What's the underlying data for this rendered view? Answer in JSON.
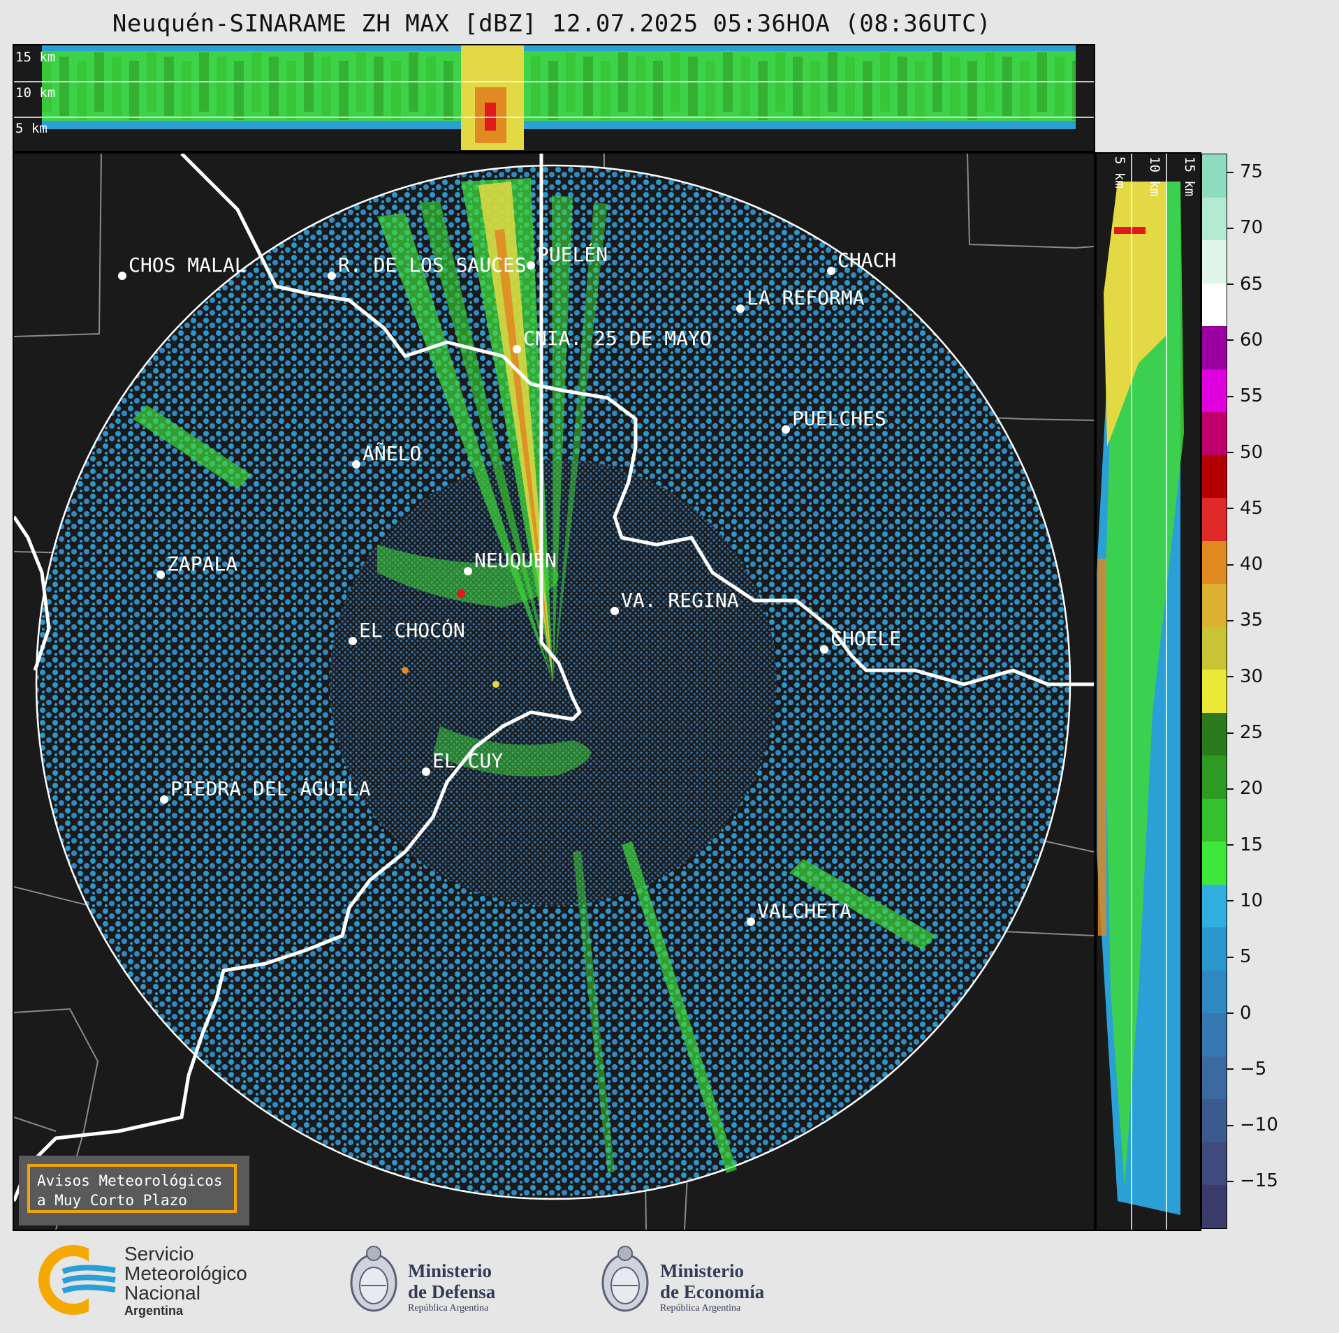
{
  "title": "Neuquén-SINARAME ZH MAX [dBZ] 12.07.2025 05:36HOA (08:36UTC)",
  "top_panel": {
    "labels": [
      "15 km",
      "10 km",
      "5 km"
    ]
  },
  "side_panel": {
    "labels": [
      "5 km",
      "10 km",
      "15 km"
    ]
  },
  "colorbar": {
    "ticks": [
      "75",
      "70",
      "65",
      "60",
      "55",
      "50",
      "45",
      "40",
      "35",
      "30",
      "25",
      "20",
      "15",
      "10",
      "5",
      "0",
      "−5",
      "−10",
      "−15"
    ],
    "colors": [
      "#3b3b6b",
      "#414a7c",
      "#3c5a8e",
      "#3a6aa0",
      "#3878b0",
      "#2f88bf",
      "#2a98cc",
      "#31aee0",
      "#3ee83a",
      "#36c02e",
      "#2e9a24",
      "#2c7a1e",
      "#eaea36",
      "#c9c436",
      "#dcb030",
      "#e08a22",
      "#e02a2a",
      "#b40000",
      "#c0006a",
      "#e000e0",
      "#9a00a0",
      "#ffffff",
      "#dff5ea",
      "#b5ead2",
      "#8edcc0"
    ]
  },
  "cities": [
    {
      "name": "CHOS MALAL",
      "color": "#ffffff"
    },
    {
      "name": "R. DE LOS SAUCES",
      "color": "#ffffff"
    },
    {
      "name": "PUELÉN",
      "color": "#ffffff"
    },
    {
      "name": "CHACH",
      "color": "#ffffff"
    },
    {
      "name": "LA REFORMA",
      "color": "#ffffff"
    },
    {
      "name": "CNIA. 25 DE MAYO",
      "color": "#ffffff"
    },
    {
      "name": "PUELCHES",
      "color": "#ffffff"
    },
    {
      "name": "AÑELO",
      "color": "#ffffff"
    },
    {
      "name": "ZAPALA",
      "color": "#ffffff"
    },
    {
      "name": "NEUQUÉN",
      "color": "#ffffff"
    },
    {
      "name": "VA. REGINA",
      "color": "#ffffff"
    },
    {
      "name": "EL CHOCÓN",
      "color": "#ffffff"
    },
    {
      "name": "CHOELE",
      "color": "#ffffff"
    },
    {
      "name": "EL CUY",
      "color": "#ffffff"
    },
    {
      "name": "PIEDRA DEL ÁGUILA",
      "color": "#ffffff"
    },
    {
      "name": "VALCHETA",
      "color": "#ffffff"
    }
  ],
  "badge": {
    "line1": "Avisos Meteorológicos",
    "line2": "a Muy Corto Plazo"
  },
  "logos": {
    "smn": {
      "line1": "Servicio",
      "line2": "Meteorológico",
      "line3": "Nacional",
      "line4": "Argentina"
    },
    "defensa": {
      "line1": "Ministerio",
      "line2": "de Defensa",
      "line3": "República Argentina"
    },
    "economia": {
      "line1": "Ministerio",
      "line2": "de Economía",
      "line3": "República Argentina"
    }
  }
}
